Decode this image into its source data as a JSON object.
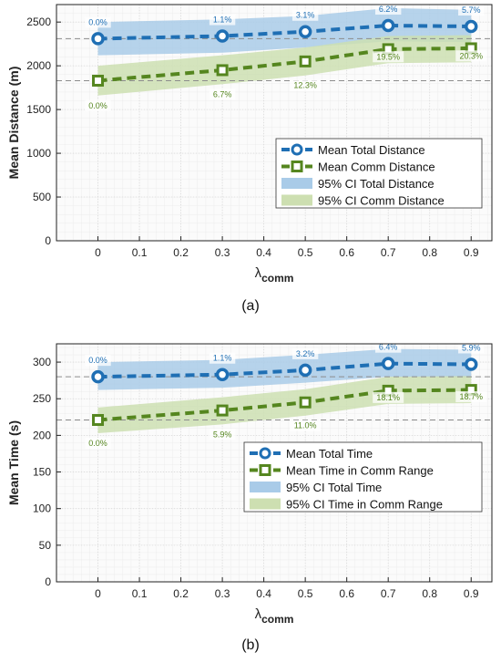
{
  "colors": {
    "total": "#1f6fb4",
    "comm": "#55861f",
    "ci_total": "#a9cbe8",
    "ci_comm": "#cddfb1",
    "dashed_ref": "#8c8c8c",
    "grid": "#d9d9d9",
    "axis": "#222222"
  },
  "chart_data": [
    {
      "panel_label": "(a)",
      "type": "line",
      "x": [
        0,
        0.3,
        0.5,
        0.7,
        0.9
      ],
      "xlim": [
        -0.1,
        0.95
      ],
      "ylim": [
        0,
        2700
      ],
      "xticks": [
        "0",
        "0.1",
        "0.2",
        "0.3",
        "0.4",
        "0.5",
        "0.6",
        "0.7",
        "0.8",
        "0.9"
      ],
      "yticks": [
        "0",
        "500",
        "1000",
        "1500",
        "2000",
        "2500"
      ],
      "xlabel": {
        "main": "λ",
        "sub": "comm"
      },
      "ylabel": "Mean Distance (m)",
      "grid": true,
      "legend_position": "center-right",
      "series": [
        {
          "name": "Mean Total Distance",
          "values": [
            2310,
            2340,
            2390,
            2460,
            2450
          ],
          "ci_low": [
            2120,
            2150,
            2210,
            2280,
            2270
          ],
          "ci_high": [
            2500,
            2530,
            2570,
            2660,
            2640
          ],
          "marker": "circle",
          "labels": [
            "0.0%",
            "1.1%",
            "3.1%",
            "6.2%",
            "5.7%"
          ],
          "ref_line": 2310
        },
        {
          "name": "Mean Comm Distance",
          "values": [
            1830,
            1950,
            2050,
            2190,
            2200
          ],
          "ci_low": [
            1660,
            1790,
            1890,
            2030,
            2040
          ],
          "ci_high": [
            2000,
            2120,
            2210,
            2340,
            2350
          ],
          "marker": "square",
          "labels": [
            "0.0%",
            "6.7%",
            "12.3%",
            "19.5%",
            "20.3%"
          ],
          "ref_line": 1830
        }
      ],
      "legend": [
        "Mean Total Distance",
        "Mean Comm Distance",
        "95% CI Total Distance",
        "95% CI Comm Distance"
      ]
    },
    {
      "panel_label": "(b)",
      "type": "line",
      "x": [
        0,
        0.3,
        0.5,
        0.7,
        0.9
      ],
      "xlim": [
        -0.1,
        0.95
      ],
      "ylim": [
        0,
        325
      ],
      "xticks": [
        "0",
        "0.1",
        "0.2",
        "0.3",
        "0.4",
        "0.5",
        "0.6",
        "0.7",
        "0.8",
        "0.9"
      ],
      "yticks": [
        "0",
        "50",
        "100",
        "150",
        "200",
        "250",
        "300"
      ],
      "xlabel": {
        "main": "λ",
        "sub": "comm"
      },
      "ylabel": "Mean Time (s)",
      "grid": true,
      "legend_position": "center-right",
      "series": [
        {
          "name": "Mean Total Time",
          "values": [
            280,
            283,
            289,
            298,
            297
          ],
          "ci_low": [
            262,
            265,
            272,
            280,
            279
          ],
          "ci_high": [
            300,
            303,
            310,
            318,
            317
          ],
          "marker": "circle",
          "labels": [
            "0.0%",
            "1.1%",
            "3.2%",
            "6.4%",
            "5.9%"
          ],
          "ref_line": 280
        },
        {
          "name": "Mean Time in Comm Range",
          "values": [
            221,
            234,
            245,
            261,
            262
          ],
          "ci_low": [
            203,
            215,
            227,
            243,
            244
          ],
          "ci_high": [
            238,
            252,
            263,
            280,
            281
          ],
          "marker": "square",
          "labels": [
            "0.0%",
            "5.9%",
            "11.0%",
            "18.1%",
            "18.7%"
          ],
          "ref_line": 221
        }
      ],
      "legend": [
        "Mean Total Time",
        "Mean Time in Comm Range",
        "95% CI Total Time",
        "95% CI Time in Comm Range"
      ]
    }
  ]
}
